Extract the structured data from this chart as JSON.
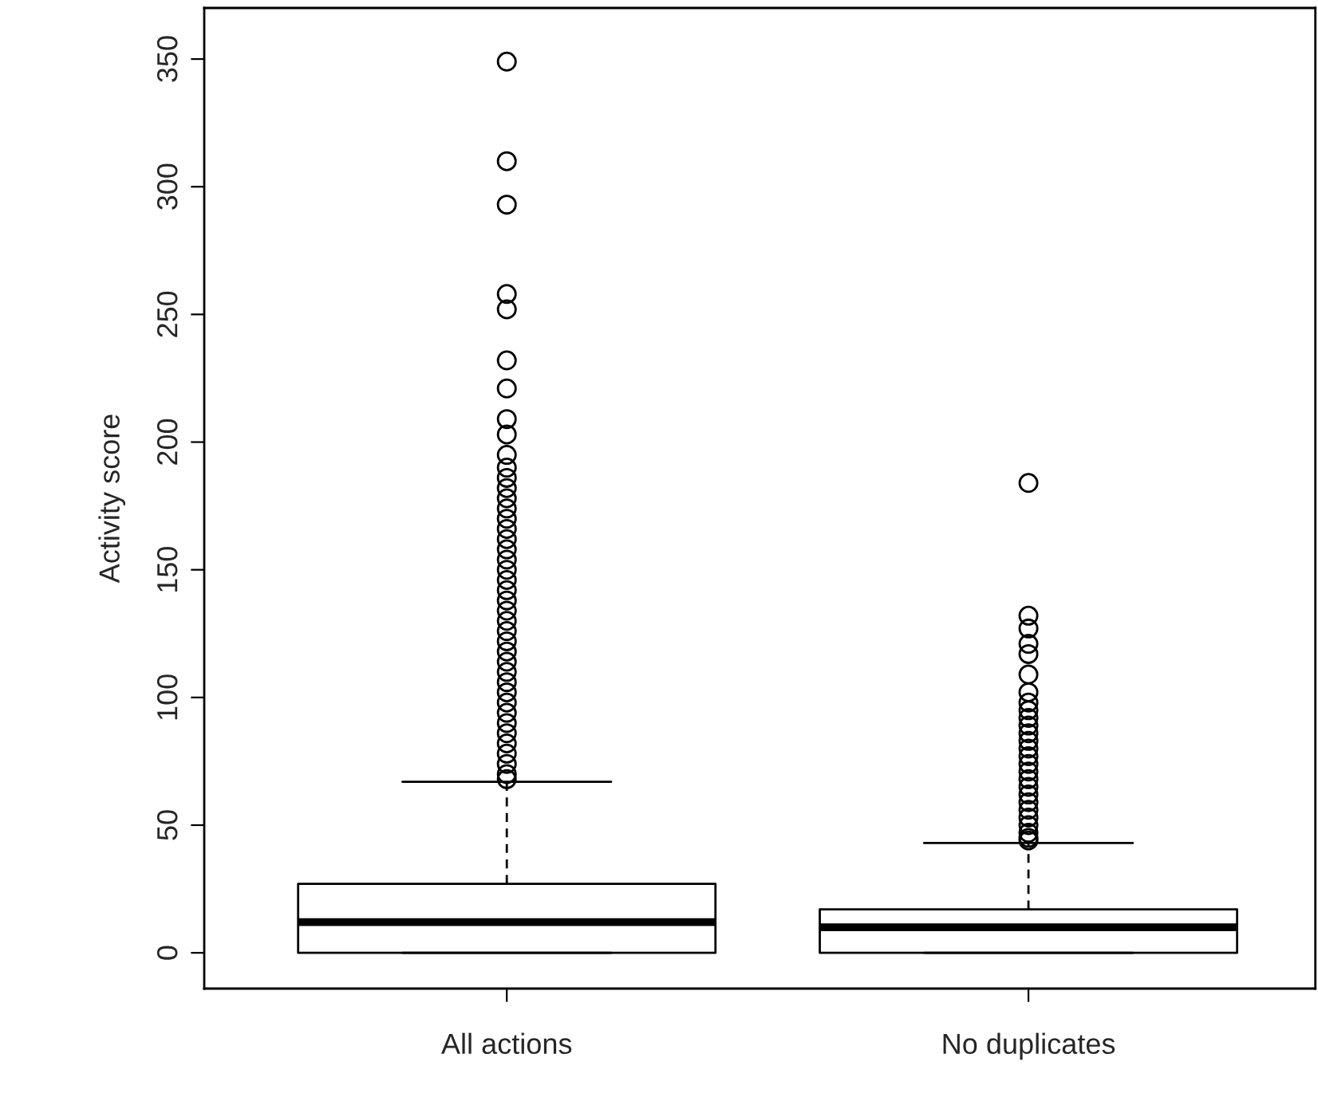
{
  "chart_data": {
    "type": "box",
    "ylabel": "Activity score",
    "categories": [
      "All actions",
      "No duplicates"
    ],
    "boxes": [
      {
        "low": 0,
        "q1": 0,
        "median": 12,
        "q3": 27,
        "high": 67,
        "outliers": [
          349,
          310,
          293,
          258,
          252,
          232,
          221,
          209,
          203,
          195,
          190,
          186,
          182,
          178,
          174,
          170,
          166,
          162,
          158,
          154,
          150,
          146,
          142,
          138,
          134,
          130,
          126,
          122,
          118,
          114,
          110,
          106,
          102,
          98,
          94,
          90,
          86,
          82,
          78,
          74,
          70,
          68
        ]
      },
      {
        "low": 0,
        "q1": 0,
        "median": 10,
        "q3": 17,
        "high": 43,
        "outliers": [
          184,
          132,
          127,
          121,
          117,
          109,
          102,
          98,
          95,
          92,
          89,
          86,
          83,
          80,
          77,
          74,
          71,
          68,
          65,
          62,
          59,
          56,
          53,
          50,
          47,
          45,
          44
        ]
      }
    ],
    "ylim": [
      -14,
      370
    ],
    "yticks": [
      0,
      50,
      100,
      150,
      200,
      250,
      300,
      350
    ],
    "grid": false
  }
}
